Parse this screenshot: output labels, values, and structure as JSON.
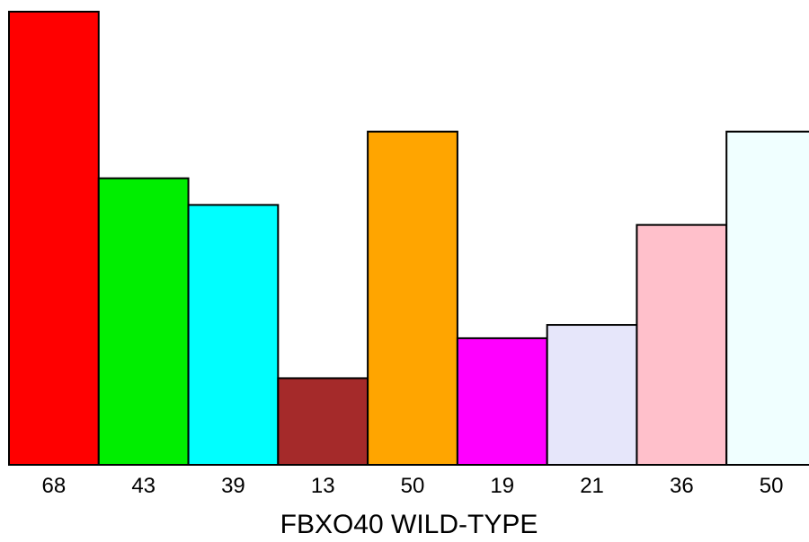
{
  "chart_data": {
    "type": "bar",
    "xlabel": "FBXO40 WILD-TYPE",
    "categories": [
      "68",
      "43",
      "39",
      "13",
      "50",
      "19",
      "21",
      "36",
      "50"
    ],
    "values": [
      68,
      43,
      39,
      13,
      50,
      19,
      21,
      36,
      50
    ],
    "colors": [
      "#ff0000",
      "#00ee00",
      "#00ffff",
      "#a52a2a",
      "#ffa500",
      "#ff00ff",
      "#e6e6fa",
      "#ffc0cb",
      "#f0ffff"
    ],
    "ylim": [
      0,
      68
    ],
    "grid": false,
    "legend": "none"
  }
}
